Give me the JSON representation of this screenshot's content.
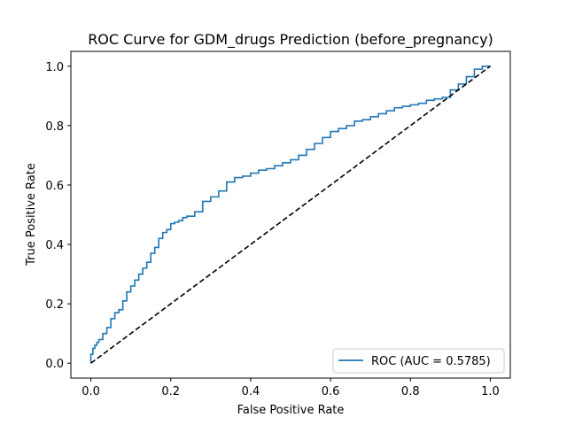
{
  "chart_data": {
    "type": "line",
    "title": "ROC Curve for GDM_drugs Prediction (before_pregnancy)",
    "xlabel": "False Positive Rate",
    "ylabel": "True Positive Rate",
    "xlim": [
      -0.05,
      1.05
    ],
    "ylim": [
      -0.05,
      1.05
    ],
    "xticks": [
      0.0,
      0.2,
      0.4,
      0.6,
      0.8,
      1.0
    ],
    "yticks": [
      0.0,
      0.2,
      0.4,
      0.6,
      0.8,
      1.0
    ],
    "xtick_labels": [
      "0.0",
      "0.2",
      "0.4",
      "0.6",
      "0.8",
      "1.0"
    ],
    "ytick_labels": [
      "0.0",
      "0.2",
      "0.4",
      "0.6",
      "0.8",
      "1.0"
    ],
    "grid": false,
    "legend_position": "lower-right",
    "series": [
      {
        "name": "ROC (AUC = 0.5785)",
        "color": "#1f77b4",
        "style": "solid",
        "x": [
          0.0,
          0.005,
          0.01,
          0.015,
          0.02,
          0.03,
          0.04,
          0.05,
          0.06,
          0.07,
          0.08,
          0.09,
          0.1,
          0.11,
          0.12,
          0.13,
          0.14,
          0.15,
          0.16,
          0.17,
          0.18,
          0.19,
          0.2,
          0.21,
          0.22,
          0.23,
          0.24,
          0.26,
          0.28,
          0.3,
          0.32,
          0.34,
          0.36,
          0.38,
          0.4,
          0.42,
          0.44,
          0.46,
          0.48,
          0.5,
          0.52,
          0.54,
          0.56,
          0.58,
          0.6,
          0.62,
          0.64,
          0.66,
          0.68,
          0.7,
          0.72,
          0.74,
          0.76,
          0.78,
          0.8,
          0.82,
          0.84,
          0.86,
          0.88,
          0.9,
          0.92,
          0.94,
          0.96,
          0.98,
          1.0
        ],
        "y": [
          0.0,
          0.03,
          0.05,
          0.06,
          0.07,
          0.08,
          0.1,
          0.12,
          0.15,
          0.17,
          0.18,
          0.21,
          0.24,
          0.26,
          0.28,
          0.3,
          0.32,
          0.34,
          0.37,
          0.39,
          0.42,
          0.44,
          0.45,
          0.47,
          0.475,
          0.48,
          0.49,
          0.495,
          0.51,
          0.545,
          0.56,
          0.58,
          0.61,
          0.625,
          0.63,
          0.64,
          0.65,
          0.655,
          0.665,
          0.675,
          0.685,
          0.7,
          0.72,
          0.74,
          0.76,
          0.78,
          0.79,
          0.8,
          0.815,
          0.82,
          0.83,
          0.84,
          0.85,
          0.86,
          0.865,
          0.87,
          0.875,
          0.885,
          0.89,
          0.895,
          0.92,
          0.94,
          0.965,
          0.99,
          1.0
        ]
      },
      {
        "name": "",
        "color": "#000000",
        "style": "dashed",
        "x": [
          0.0,
          1.0
        ],
        "y": [
          0.0,
          1.0
        ]
      }
    ]
  }
}
